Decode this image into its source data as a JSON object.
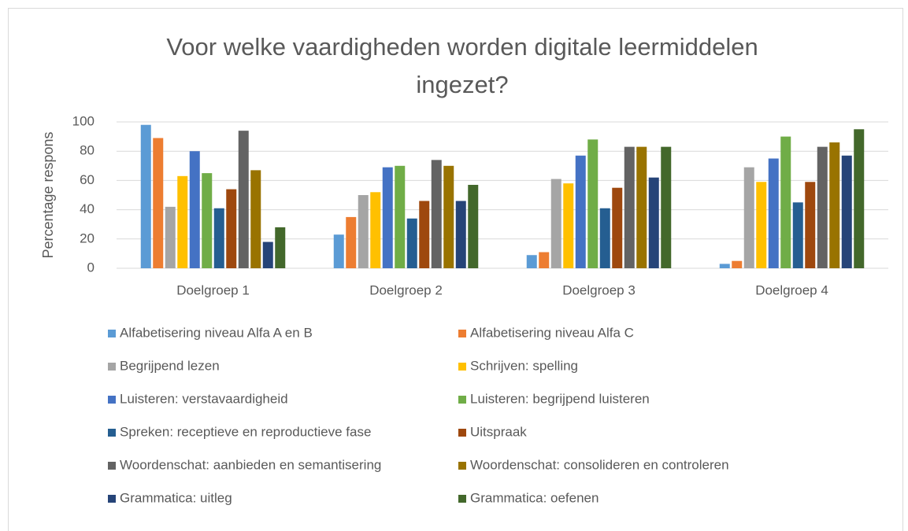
{
  "chart_data": {
    "type": "bar",
    "title": "Voor welke vaardigheden worden digitale leermiddelen ingezet?",
    "ylabel": "Percentage respons",
    "categories": [
      "Doelgroep 1",
      "Doelgroep 2",
      "Doelgroep 3",
      "Doelgroep 4"
    ],
    "ylim": [
      0,
      100
    ],
    "yticks": [
      0,
      20,
      40,
      60,
      80,
      100
    ],
    "grid": true,
    "legend": "bottom",
    "series": [
      {
        "name": "Alfabetisering niveau Alfa A en B",
        "color": "#5B9BD5",
        "values": [
          98,
          23,
          9,
          3
        ]
      },
      {
        "name": "Alfabetisering niveau Alfa C",
        "color": "#ED7D31",
        "values": [
          89,
          35,
          11,
          5
        ]
      },
      {
        "name": "Begrijpend lezen",
        "color": "#A5A5A5",
        "values": [
          42,
          50,
          61,
          69
        ]
      },
      {
        "name": "Schrijven: spelling",
        "color": "#FFC000",
        "values": [
          63,
          52,
          58,
          59
        ]
      },
      {
        "name": "Luisteren: verstavaardigheid",
        "color": "#4472C4",
        "values": [
          80,
          69,
          77,
          75
        ]
      },
      {
        "name": "Luisteren: begrijpend luisteren",
        "color": "#70AD47",
        "values": [
          65,
          70,
          88,
          90
        ]
      },
      {
        "name": "Spreken: receptieve en reproductieve fase",
        "color": "#255E91",
        "values": [
          41,
          34,
          41,
          45
        ]
      },
      {
        "name": "Uitspraak",
        "color": "#9E480E",
        "values": [
          54,
          46,
          55,
          59
        ]
      },
      {
        "name": "Woordenschat: aanbieden en semantisering",
        "color": "#636363",
        "values": [
          94,
          74,
          83,
          83
        ]
      },
      {
        "name": "Woordenschat: consolideren en controleren",
        "color": "#997300",
        "values": [
          67,
          70,
          83,
          86
        ]
      },
      {
        "name": "Grammatica: uitleg",
        "color": "#264478",
        "values": [
          18,
          46,
          62,
          77
        ]
      },
      {
        "name": "Grammatica: oefenen",
        "color": "#43682B",
        "values": [
          28,
          57,
          83,
          95
        ]
      }
    ]
  }
}
